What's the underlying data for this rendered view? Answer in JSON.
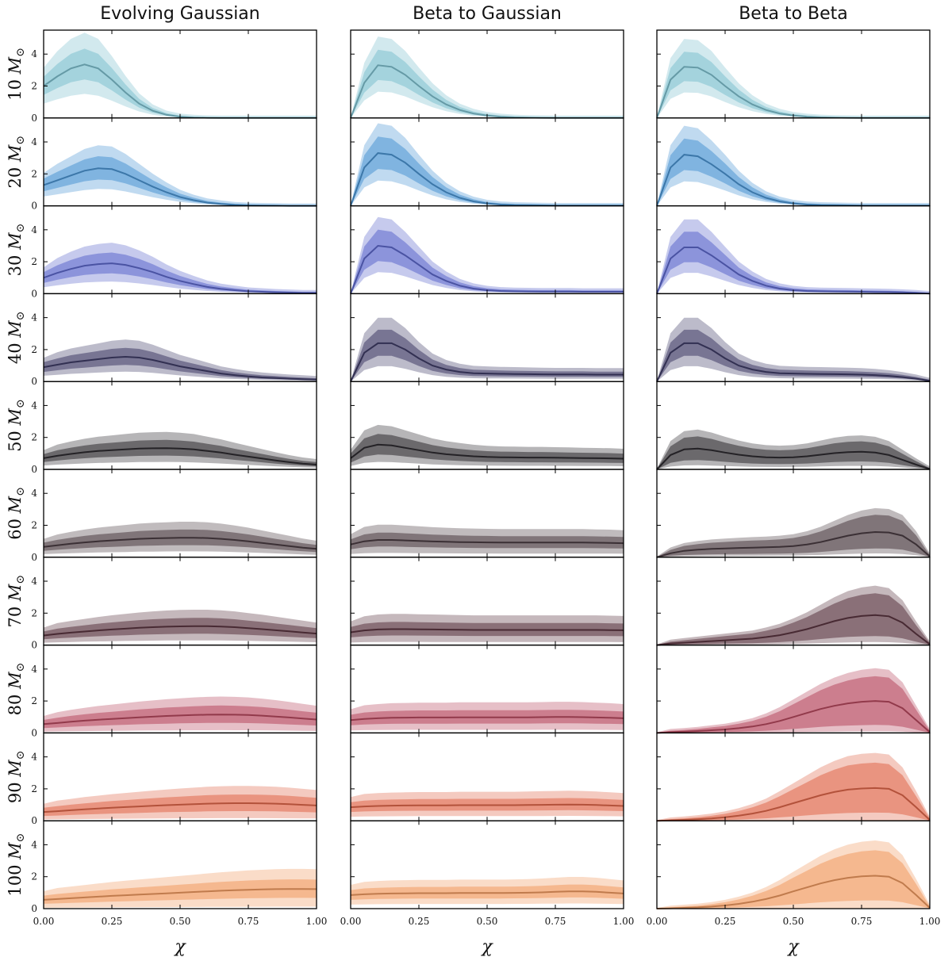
{
  "chart_data": {
    "type": "area",
    "description_free": true,
    "columns": [
      "Evolving Gaussian",
      "Beta to Gaussian",
      "Beta to Beta"
    ],
    "rows": [
      "10",
      "20",
      "30",
      "40",
      "50",
      "60",
      "70",
      "80",
      "90",
      "100"
    ],
    "row_label_unit": "M",
    "row_label_subscript": "⊙",
    "xlabel": "χ",
    "xlim": [
      0,
      1
    ],
    "ylim": [
      0,
      5.5
    ],
    "xticks": [
      "0.00",
      "0.25",
      "0.50",
      "0.75",
      "1.00"
    ],
    "yticks": [
      "0",
      "2",
      "4"
    ],
    "series_colors": [
      "#7ec1cf",
      "#4b95d3",
      "#5d68cc",
      "#3f3c66",
      "#2d2a30",
      "#4a3c42",
      "#5a3440",
      "#b6485e",
      "#e0674a",
      "#f09a60"
    ],
    "band_levels": [
      "90%",
      "50%",
      "median"
    ],
    "x": [
      0,
      0.05,
      0.1,
      0.15,
      0.2,
      0.25,
      0.3,
      0.35,
      0.4,
      0.45,
      0.5,
      0.55,
      0.6,
      0.65,
      0.7,
      0.75,
      0.8,
      0.85,
      0.9,
      0.95,
      1.0
    ],
    "panels": [
      [
        {
          "median": [
            2.0,
            2.6,
            3.1,
            3.35,
            3.1,
            2.4,
            1.6,
            0.9,
            0.45,
            0.2,
            0.08,
            0.03,
            0.01,
            0,
            0,
            0,
            0,
            0,
            0,
            0,
            0
          ],
          "w50": 0.28,
          "w90": 0.55
        },
        {
          "median": [
            0,
            2.2,
            3.3,
            3.2,
            2.7,
            2.0,
            1.35,
            0.85,
            0.5,
            0.28,
            0.15,
            0.08,
            0.04,
            0.02,
            0.01,
            0,
            0,
            0,
            0,
            0,
            0
          ],
          "w50": 0.28,
          "w90": 0.5
        },
        {
          "median": [
            0,
            2.4,
            3.2,
            3.15,
            2.7,
            2.0,
            1.35,
            0.85,
            0.5,
            0.28,
            0.15,
            0.08,
            0.04,
            0.02,
            0.01,
            0,
            0,
            0,
            0,
            0,
            0
          ],
          "w50": 0.28,
          "w90": 0.5
        }
      ],
      [
        {
          "median": [
            1.3,
            1.6,
            1.9,
            2.2,
            2.35,
            2.3,
            2.0,
            1.6,
            1.2,
            0.85,
            0.55,
            0.35,
            0.2,
            0.12,
            0.06,
            0.03,
            0.02,
            0.01,
            0,
            0,
            0
          ],
          "w50": 0.3,
          "w90": 0.55
        },
        {
          "median": [
            0,
            2.4,
            3.3,
            3.2,
            2.7,
            2.0,
            1.35,
            0.85,
            0.5,
            0.28,
            0.15,
            0.08,
            0.05,
            0.04,
            0.03,
            0.02,
            0.02,
            0.02,
            0.02,
            0.02,
            0.02
          ],
          "w50": 0.3,
          "w90": 0.52
        },
        {
          "median": [
            0,
            2.4,
            3.2,
            3.1,
            2.6,
            2.0,
            1.35,
            0.85,
            0.5,
            0.28,
            0.15,
            0.08,
            0.05,
            0.04,
            0.03,
            0.02,
            0.02,
            0.02,
            0.02,
            0.02,
            0.02
          ],
          "w50": 0.3,
          "w90": 0.52
        }
      ],
      [
        {
          "median": [
            1.0,
            1.3,
            1.55,
            1.75,
            1.85,
            1.9,
            1.8,
            1.6,
            1.35,
            1.05,
            0.8,
            0.6,
            0.42,
            0.3,
            0.22,
            0.15,
            0.12,
            0.09,
            0.07,
            0.05,
            0.05
          ],
          "w50": 0.33,
          "w90": 0.6
        },
        {
          "median": [
            0,
            2.2,
            3.0,
            2.9,
            2.4,
            1.8,
            1.2,
            0.8,
            0.5,
            0.32,
            0.22,
            0.17,
            0.15,
            0.14,
            0.13,
            0.13,
            0.13,
            0.12,
            0.12,
            0.12,
            0.12
          ],
          "w50": 0.32,
          "w90": 0.55
        },
        {
          "median": [
            0,
            2.2,
            2.9,
            2.9,
            2.4,
            1.8,
            1.2,
            0.8,
            0.5,
            0.32,
            0.22,
            0.17,
            0.15,
            0.14,
            0.13,
            0.12,
            0.11,
            0.1,
            0.08,
            0.05,
            0.01
          ],
          "w50": 0.32,
          "w90": 0.55
        }
      ],
      [
        {
          "median": [
            0.9,
            1.05,
            1.2,
            1.3,
            1.4,
            1.5,
            1.55,
            1.5,
            1.35,
            1.15,
            0.95,
            0.8,
            0.65,
            0.5,
            0.4,
            0.32,
            0.26,
            0.22,
            0.18,
            0.15,
            0.12
          ],
          "w50": 0.33,
          "w90": 0.6
        },
        {
          "median": [
            0,
            1.8,
            2.4,
            2.4,
            2.0,
            1.45,
            1.0,
            0.75,
            0.6,
            0.52,
            0.5,
            0.48,
            0.47,
            0.46,
            0.45,
            0.44,
            0.44,
            0.44,
            0.43,
            0.43,
            0.43
          ],
          "w50": 0.33,
          "w90": 0.6
        },
        {
          "median": [
            0,
            1.8,
            2.4,
            2.4,
            2.0,
            1.45,
            1.0,
            0.75,
            0.6,
            0.52,
            0.5,
            0.48,
            0.47,
            0.46,
            0.45,
            0.43,
            0.4,
            0.35,
            0.28,
            0.18,
            0.05
          ],
          "w50": 0.33,
          "w90": 0.6
        }
      ],
      [
        {
          "median": [
            0.7,
            0.85,
            0.97,
            1.07,
            1.15,
            1.2,
            1.25,
            1.3,
            1.32,
            1.33,
            1.3,
            1.25,
            1.15,
            1.05,
            0.92,
            0.8,
            0.68,
            0.56,
            0.45,
            0.36,
            0.3
          ],
          "w50": 0.35,
          "w90": 0.65
        },
        {
          "median": [
            0.7,
            1.35,
            1.55,
            1.5,
            1.35,
            1.2,
            1.05,
            0.95,
            0.88,
            0.82,
            0.78,
            0.76,
            0.75,
            0.74,
            0.74,
            0.73,
            0.72,
            0.71,
            0.7,
            0.69,
            0.67
          ],
          "w50": 0.4,
          "w90": 0.7
        },
        {
          "median": [
            0,
            0.9,
            1.25,
            1.3,
            1.2,
            1.05,
            0.92,
            0.82,
            0.76,
            0.74,
            0.76,
            0.82,
            0.92,
            1.02,
            1.08,
            1.1,
            1.05,
            0.9,
            0.6,
            0.3,
            0.02
          ],
          "w50": 0.55,
          "w90": 0.8
        }
      ],
      [
        {
          "median": [
            0.65,
            0.75,
            0.85,
            0.93,
            1.0,
            1.05,
            1.1,
            1.15,
            1.18,
            1.2,
            1.22,
            1.22,
            1.2,
            1.15,
            1.08,
            1.0,
            0.9,
            0.8,
            0.7,
            0.6,
            0.52
          ],
          "w50": 0.38,
          "w90": 0.7
        },
        {
          "median": [
            0.8,
            1.0,
            1.08,
            1.08,
            1.05,
            1.02,
            0.99,
            0.97,
            0.95,
            0.94,
            0.93,
            0.92,
            0.92,
            0.92,
            0.92,
            0.92,
            0.92,
            0.92,
            0.91,
            0.9,
            0.88
          ],
          "w50": 0.38,
          "w90": 0.75
        },
        {
          "median": [
            0,
            0.25,
            0.4,
            0.47,
            0.52,
            0.55,
            0.58,
            0.6,
            0.62,
            0.65,
            0.7,
            0.8,
            0.95,
            1.15,
            1.35,
            1.5,
            1.58,
            1.55,
            1.35,
            0.8,
            0.05
          ],
          "w50": 0.65,
          "w90": 0.85
        }
      ],
      [
        {
          "median": [
            0.6,
            0.7,
            0.78,
            0.85,
            0.92,
            0.98,
            1.03,
            1.08,
            1.12,
            1.15,
            1.17,
            1.18,
            1.18,
            1.16,
            1.12,
            1.06,
            1.0,
            0.93,
            0.86,
            0.79,
            0.72
          ],
          "w50": 0.4,
          "w90": 0.75
        },
        {
          "median": [
            0.8,
            0.92,
            0.98,
            1.0,
            1.0,
            0.99,
            0.98,
            0.97,
            0.96,
            0.95,
            0.95,
            0.95,
            0.95,
            0.95,
            0.95,
            0.95,
            0.95,
            0.95,
            0.95,
            0.94,
            0.93
          ],
          "w50": 0.4,
          "w90": 0.8
        },
        {
          "median": [
            0,
            0.1,
            0.15,
            0.2,
            0.25,
            0.3,
            0.35,
            0.4,
            0.5,
            0.62,
            0.8,
            1.0,
            1.25,
            1.5,
            1.7,
            1.82,
            1.88,
            1.8,
            1.4,
            0.7,
            0.05
          ],
          "w50": 0.7,
          "w90": 0.9
        }
      ],
      [
        {
          "median": [
            0.55,
            0.62,
            0.7,
            0.77,
            0.83,
            0.88,
            0.93,
            0.98,
            1.02,
            1.06,
            1.09,
            1.12,
            1.14,
            1.15,
            1.14,
            1.12,
            1.08,
            1.03,
            0.97,
            0.9,
            0.84
          ],
          "w50": 0.45,
          "w90": 0.85
        },
        {
          "median": [
            0.8,
            0.88,
            0.92,
            0.95,
            0.96,
            0.97,
            0.97,
            0.97,
            0.98,
            0.98,
            0.98,
            0.98,
            0.98,
            0.98,
            0.99,
            1.0,
            1.0,
            0.99,
            0.97,
            0.95,
            0.92
          ],
          "w50": 0.4,
          "w90": 0.8
        },
        {
          "median": [
            0,
            0.05,
            0.08,
            0.12,
            0.17,
            0.22,
            0.3,
            0.4,
            0.55,
            0.75,
            1.0,
            1.25,
            1.5,
            1.7,
            1.85,
            1.95,
            2.0,
            1.95,
            1.55,
            0.8,
            0.05
          ],
          "w50": 0.75,
          "w90": 0.95
        }
      ],
      [
        {
          "median": [
            0.55,
            0.6,
            0.66,
            0.72,
            0.77,
            0.82,
            0.86,
            0.9,
            0.94,
            0.98,
            1.01,
            1.04,
            1.07,
            1.09,
            1.1,
            1.1,
            1.09,
            1.07,
            1.04,
            1.0,
            0.96
          ],
          "w50": 0.45,
          "w90": 0.85
        },
        {
          "median": [
            0.85,
            0.9,
            0.93,
            0.95,
            0.96,
            0.97,
            0.97,
            0.97,
            0.98,
            0.98,
            0.98,
            0.98,
            0.98,
            0.99,
            1.0,
            1.01,
            1.02,
            1.01,
            0.99,
            0.96,
            0.93
          ],
          "w50": 0.35,
          "w90": 0.7
        },
        {
          "median": [
            0,
            0.03,
            0.06,
            0.1,
            0.15,
            0.22,
            0.32,
            0.45,
            0.62,
            0.85,
            1.1,
            1.35,
            1.6,
            1.8,
            1.95,
            2.02,
            2.05,
            2.0,
            1.6,
            0.85,
            0.05
          ],
          "w50": 0.75,
          "w90": 1.0
        }
      ],
      [
        {
          "median": [
            0.55,
            0.6,
            0.65,
            0.7,
            0.75,
            0.8,
            0.84,
            0.88,
            0.92,
            0.96,
            1.0,
            1.04,
            1.08,
            1.12,
            1.15,
            1.18,
            1.2,
            1.22,
            1.23,
            1.23,
            1.22
          ],
          "w50": 0.45,
          "w90": 0.9
        },
        {
          "median": [
            0.85,
            0.9,
            0.93,
            0.95,
            0.96,
            0.97,
            0.97,
            0.97,
            0.98,
            0.98,
            0.98,
            0.98,
            0.99,
            1.0,
            1.02,
            1.05,
            1.08,
            1.08,
            1.05,
            1.0,
            0.95
          ],
          "w50": 0.35,
          "w90": 0.7
        },
        {
          "median": [
            0,
            0.02,
            0.05,
            0.08,
            0.13,
            0.2,
            0.3,
            0.43,
            0.6,
            0.82,
            1.08,
            1.33,
            1.58,
            1.78,
            1.93,
            2.02,
            2.06,
            2.0,
            1.6,
            0.85,
            0.05
          ],
          "w50": 0.75,
          "w90": 1.0
        }
      ]
    ]
  }
}
